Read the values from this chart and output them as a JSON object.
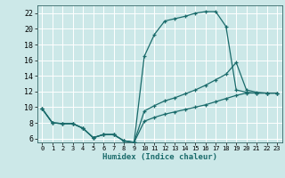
{
  "xlabel": "Humidex (Indice chaleur)",
  "bg_color": "#cce8e8",
  "grid_color": "#ffffff",
  "line_color": "#1a6b6b",
  "xlim": [
    -0.5,
    23.5
  ],
  "ylim": [
    5.5,
    23.0
  ],
  "yticks": [
    6,
    8,
    10,
    12,
    14,
    16,
    18,
    20,
    22
  ],
  "xticks": [
    0,
    1,
    2,
    3,
    4,
    5,
    6,
    7,
    8,
    9,
    10,
    11,
    12,
    13,
    14,
    15,
    16,
    17,
    18,
    19,
    20,
    21,
    22,
    23
  ],
  "xtick_labels": [
    "0",
    "1",
    "2",
    "3",
    "4",
    "5",
    "6",
    "7",
    "8",
    "9",
    "10",
    "11",
    "12",
    "13",
    "14",
    "15",
    "16",
    "17",
    "18",
    "19",
    "20",
    "21",
    "22",
    "23"
  ],
  "series": [
    {
      "x": [
        0,
        1,
        2,
        3,
        4,
        5,
        6,
        7,
        8,
        9,
        10,
        11,
        12,
        13,
        14,
        15,
        16,
        17,
        18,
        19,
        20,
        21,
        22,
        23
      ],
      "y": [
        9.8,
        8.0,
        7.9,
        7.9,
        7.3,
        6.1,
        6.5,
        6.5,
        5.7,
        5.5,
        16.5,
        19.3,
        21.0,
        21.3,
        21.6,
        22.0,
        22.2,
        22.2,
        20.3,
        12.2,
        11.9,
        11.8,
        11.8,
        11.8
      ]
    },
    {
      "x": [
        0,
        1,
        2,
        3,
        4,
        5,
        6,
        7,
        8,
        9,
        10,
        11,
        12,
        13,
        14,
        15,
        16,
        17,
        18,
        19,
        20,
        21,
        22,
        23
      ],
      "y": [
        9.8,
        8.0,
        7.9,
        7.9,
        7.3,
        6.1,
        6.5,
        6.5,
        5.7,
        5.5,
        9.5,
        10.2,
        10.8,
        11.2,
        11.7,
        12.2,
        12.8,
        13.5,
        14.2,
        15.7,
        12.2,
        11.9,
        11.8,
        11.8
      ]
    },
    {
      "x": [
        0,
        1,
        2,
        3,
        4,
        5,
        6,
        7,
        8,
        9,
        10,
        11,
        12,
        13,
        14,
        15,
        16,
        17,
        18,
        19,
        20,
        21,
        22,
        23
      ],
      "y": [
        9.8,
        8.0,
        7.9,
        7.9,
        7.3,
        6.1,
        6.5,
        6.5,
        5.7,
        5.5,
        8.2,
        8.7,
        9.1,
        9.4,
        9.7,
        10.0,
        10.3,
        10.7,
        11.1,
        11.5,
        11.8,
        11.8,
        11.8,
        11.8
      ]
    }
  ]
}
